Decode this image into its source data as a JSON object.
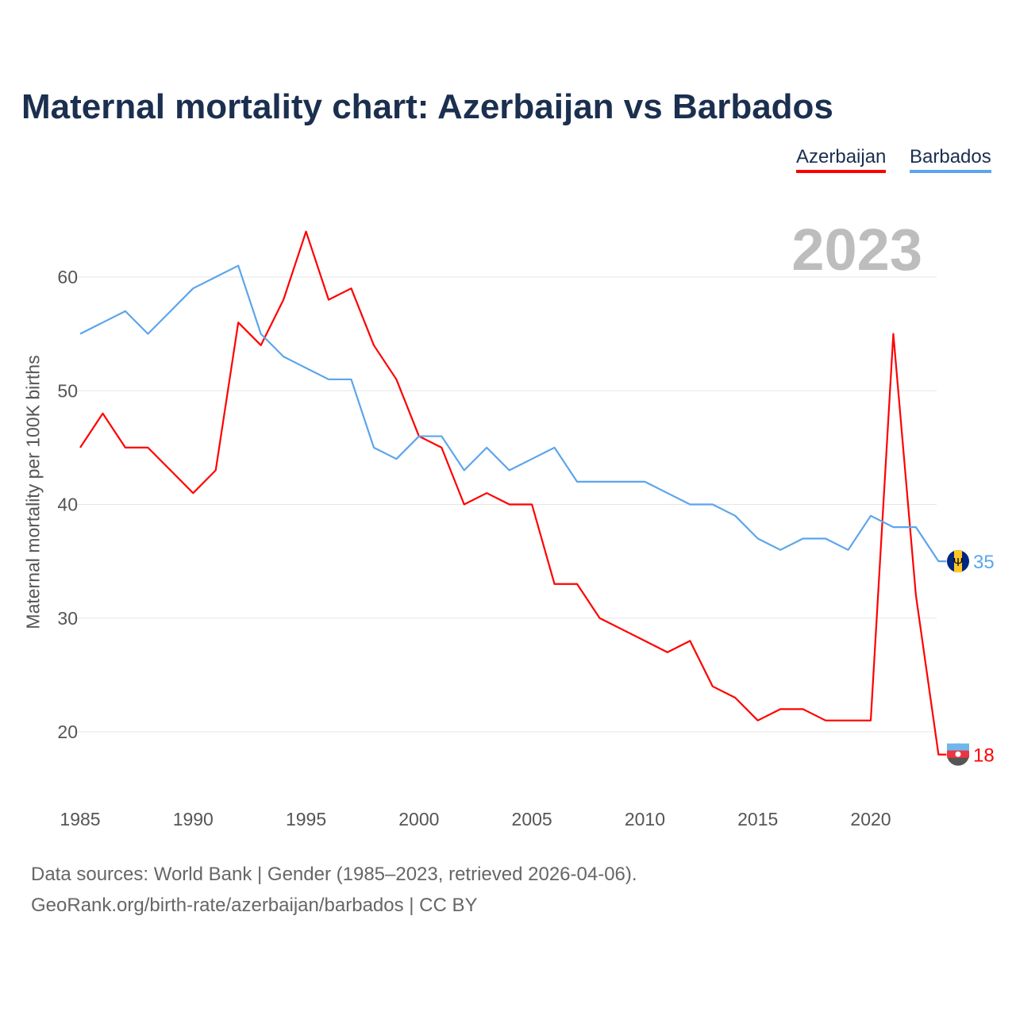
{
  "chart_data": {
    "type": "line",
    "title": "Maternal mortality chart: Azerbaijan vs Barbados",
    "ylabel": "Maternal mortality per 100K births",
    "xlabel": "",
    "year_label": "2023",
    "x": [
      1985,
      1986,
      1987,
      1988,
      1989,
      1990,
      1991,
      1992,
      1993,
      1994,
      1995,
      1996,
      1997,
      1998,
      1999,
      2000,
      2001,
      2002,
      2003,
      2004,
      2005,
      2006,
      2007,
      2008,
      2009,
      2010,
      2011,
      2012,
      2013,
      2014,
      2015,
      2016,
      2017,
      2018,
      2019,
      2020,
      2021,
      2022,
      2023
    ],
    "series": [
      {
        "name": "Azerbaijan",
        "color": "#ff0000",
        "end_label": "18",
        "values": [
          45,
          48,
          45,
          45,
          43,
          41,
          43,
          56,
          54,
          58,
          64,
          58,
          59,
          54,
          51,
          46,
          45,
          40,
          41,
          40,
          40,
          33,
          33,
          30,
          29,
          28,
          27,
          28,
          24,
          23,
          21,
          22,
          22,
          21,
          21,
          21,
          55,
          32,
          18
        ]
      },
      {
        "name": "Barbados",
        "color": "#5ca5ec",
        "end_label": "35",
        "values": [
          55,
          56,
          57,
          55,
          57,
          59,
          60,
          61,
          55,
          53,
          52,
          51,
          51,
          45,
          44,
          46,
          46,
          43,
          45,
          43,
          44,
          45,
          42,
          42,
          42,
          42,
          41,
          40,
          40,
          39,
          37,
          36,
          37,
          37,
          36,
          39,
          38,
          38,
          35
        ]
      }
    ],
    "xticks": [
      "1985",
      "1990",
      "1995",
      "2000",
      "2005",
      "2010",
      "2015",
      "2020"
    ],
    "yticks": [
      "20",
      "30",
      "40",
      "50",
      "60"
    ],
    "xlim": [
      1985,
      2023
    ],
    "ylim": [
      15,
      66
    ],
    "grid": true,
    "legend_position": "top-right"
  },
  "footer": {
    "line1": "Data sources: World Bank | Gender (1985–2023, retrieved 2026-04-06).",
    "line2": "GeoRank.org/birth-rate/azerbaijan/barbados | CC BY"
  }
}
